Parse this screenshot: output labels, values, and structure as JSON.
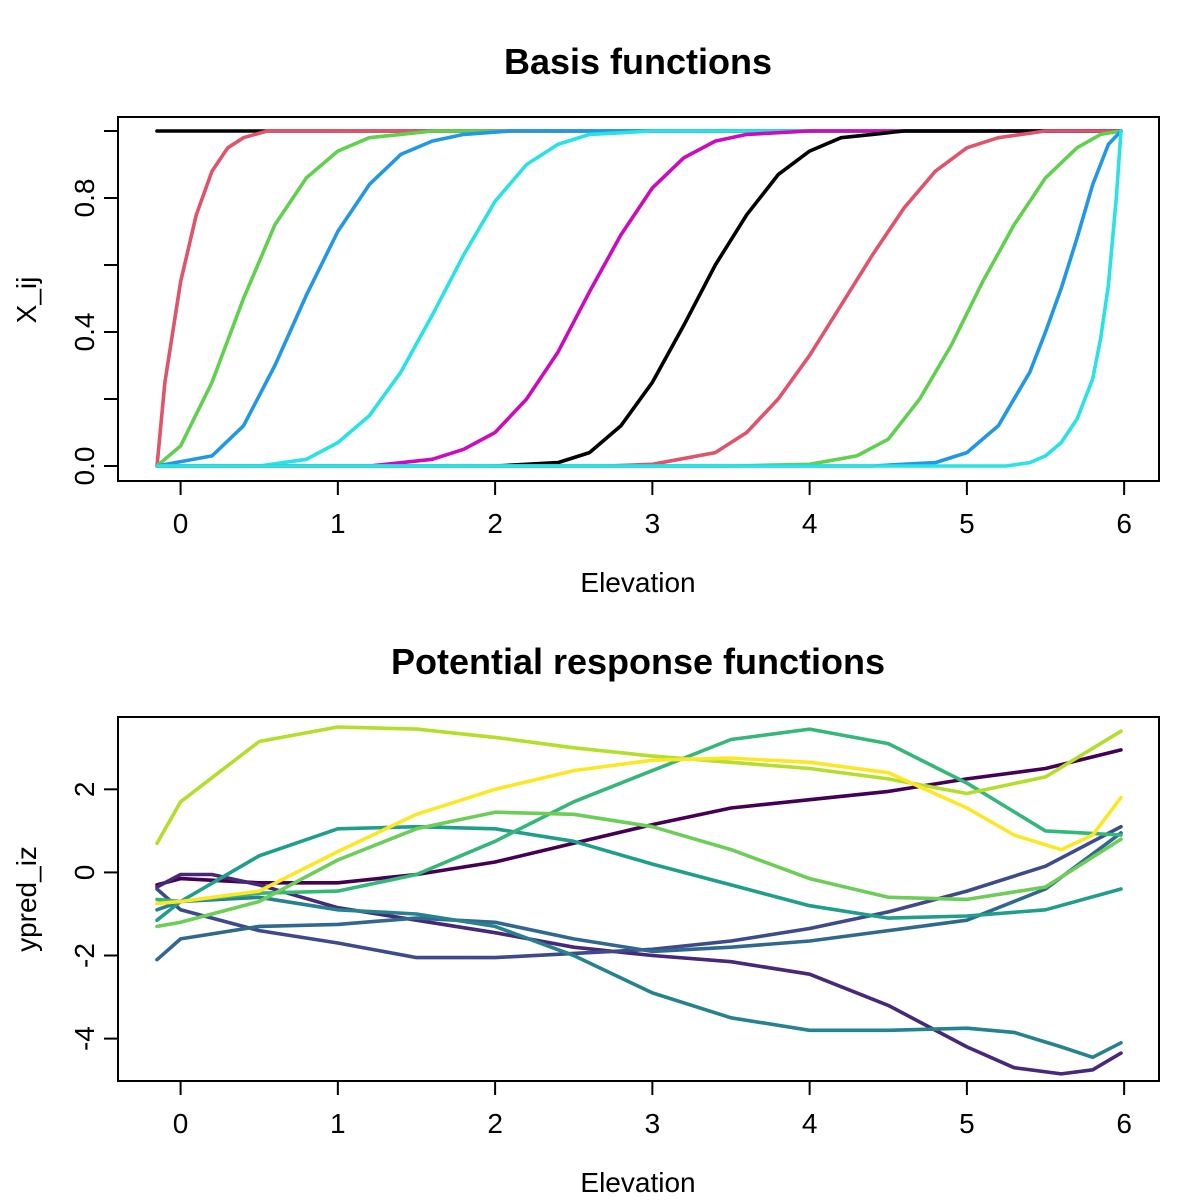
{
  "chart_data": [
    {
      "type": "line",
      "title": "Basis functions",
      "xlabel": "Elevation",
      "ylabel": "X_ij",
      "xlim": [
        -0.15,
        5.98
      ],
      "ylim": [
        0,
        1
      ],
      "xticks": [
        0,
        1,
        2,
        3,
        4,
        5,
        6
      ],
      "xtick_labels": [
        "0",
        "1",
        "2",
        "3",
        "4",
        "5",
        "6"
      ],
      "yticks": [
        0,
        0.2,
        0.4,
        0.6,
        0.8,
        1.0
      ],
      "ytick_labels": [
        "0.0",
        "",
        "0.4",
        "",
        "0.8",
        ""
      ],
      "grid": false,
      "legend": "none",
      "series": [
        {
          "color": "#000000",
          "x": [
            -0.15,
            5.98
          ],
          "y": [
            1,
            1
          ]
        },
        {
          "color": "#DF536B",
          "x": [
            -0.15,
            -0.1,
            0,
            0.1,
            0.2,
            0.3,
            0.4,
            0.55,
            5.98
          ],
          "y": [
            0,
            0.25,
            0.55,
            0.75,
            0.88,
            0.95,
            0.98,
            1,
            1
          ]
        },
        {
          "color": "#61D04F",
          "x": [
            -0.15,
            0,
            0.2,
            0.4,
            0.6,
            0.8,
            1.0,
            1.2,
            1.4,
            1.6,
            5.98
          ],
          "y": [
            0,
            0.06,
            0.25,
            0.5,
            0.72,
            0.86,
            0.94,
            0.98,
            0.99,
            1,
            1
          ]
        },
        {
          "color": "#2297E6",
          "x": [
            -0.15,
            0.2,
            0.4,
            0.6,
            0.8,
            1.0,
            1.2,
            1.4,
            1.6,
            1.8,
            2.1,
            2.4,
            5.98
          ],
          "y": [
            0,
            0.03,
            0.12,
            0.3,
            0.51,
            0.7,
            0.84,
            0.93,
            0.97,
            0.99,
            1,
            1,
            1
          ]
        },
        {
          "color": "#28E2E5",
          "x": [
            -0.15,
            0.5,
            0.8,
            1.0,
            1.2,
            1.4,
            1.6,
            1.8,
            2.0,
            2.2,
            2.4,
            2.6,
            3.0,
            5.98
          ],
          "y": [
            0,
            0,
            0.02,
            0.07,
            0.15,
            0.28,
            0.45,
            0.63,
            0.79,
            0.9,
            0.96,
            0.99,
            1,
            1
          ]
        },
        {
          "color": "#CD0BBC",
          "x": [
            -0.15,
            1.2,
            1.6,
            1.8,
            2.0,
            2.2,
            2.4,
            2.6,
            2.8,
            3.0,
            3.2,
            3.4,
            3.6,
            4.0,
            5.98
          ],
          "y": [
            0,
            0,
            0.02,
            0.05,
            0.1,
            0.2,
            0.34,
            0.52,
            0.69,
            0.83,
            0.92,
            0.97,
            0.99,
            1,
            1
          ]
        },
        {
          "color": "#000000",
          "x": [
            2.0,
            2.4,
            2.6,
            2.8,
            3.0,
            3.2,
            3.4,
            3.6,
            3.8,
            4.0,
            4.2,
            4.4,
            4.6,
            5.0,
            5.98
          ],
          "y": [
            0,
            0.01,
            0.04,
            0.12,
            0.25,
            0.42,
            0.6,
            0.75,
            0.87,
            0.94,
            0.98,
            0.99,
            1,
            1,
            1
          ]
        },
        {
          "color": "#DF536B",
          "x": [
            -0.15,
            2.7,
            3.0,
            3.4,
            3.6,
            3.8,
            4.0,
            4.2,
            4.4,
            4.6,
            4.8,
            5.0,
            5.2,
            5.5,
            5.98
          ],
          "y": [
            0,
            0,
            0.005,
            0.04,
            0.1,
            0.2,
            0.33,
            0.48,
            0.63,
            0.77,
            0.88,
            0.95,
            0.98,
            1,
            1
          ]
        },
        {
          "color": "#61D04F",
          "x": [
            -0.15,
            3.5,
            4.0,
            4.3,
            4.5,
            4.7,
            4.9,
            5.1,
            5.3,
            5.5,
            5.7,
            5.85,
            5.98
          ],
          "y": [
            0,
            0,
            0.005,
            0.03,
            0.08,
            0.2,
            0.36,
            0.55,
            0.72,
            0.86,
            0.95,
            0.99,
            1
          ]
        },
        {
          "color": "#2297E6",
          "x": [
            -0.15,
            4.4,
            4.8,
            5.0,
            5.2,
            5.4,
            5.5,
            5.6,
            5.7,
            5.8,
            5.9,
            5.98
          ],
          "y": [
            0,
            0,
            0.01,
            0.04,
            0.12,
            0.28,
            0.4,
            0.53,
            0.68,
            0.84,
            0.96,
            1
          ]
        },
        {
          "color": "#28E2E5",
          "x": [
            -0.15,
            5.25,
            5.4,
            5.5,
            5.6,
            5.7,
            5.8,
            5.85,
            5.9,
            5.95,
            5.98
          ],
          "y": [
            0,
            0,
            0.01,
            0.03,
            0.07,
            0.14,
            0.26,
            0.38,
            0.54,
            0.8,
            1
          ]
        }
      ]
    },
    {
      "type": "line",
      "title": "Potential response functions",
      "xlabel": "Elevation",
      "ylabel": "ypred_iz",
      "xlim": [
        -0.15,
        5.98
      ],
      "ylim": [
        -4.9,
        3.5
      ],
      "xticks": [
        0,
        1,
        2,
        3,
        4,
        5,
        6
      ],
      "xtick_labels": [
        "0",
        "1",
        "2",
        "3",
        "4",
        "5",
        "6"
      ],
      "yticks": [
        -4,
        -2,
        0,
        2
      ],
      "ytick_labels": [
        "-4",
        "-2",
        "0",
        "2"
      ],
      "grid": false,
      "legend": "none",
      "series": [
        {
          "color": "#440154",
          "x": [
            -0.15,
            0,
            0.5,
            1,
            1.5,
            2,
            2.5,
            3,
            3.5,
            4,
            4.5,
            5,
            5.5,
            5.98
          ],
          "y": [
            -0.3,
            -0.15,
            -0.25,
            -0.25,
            -0.05,
            0.25,
            0.7,
            1.15,
            1.55,
            1.75,
            1.95,
            2.25,
            2.5,
            2.95
          ]
        },
        {
          "color": "#482878",
          "x": [
            -0.15,
            0,
            0.2,
            0.5,
            1,
            1.5,
            2,
            2.5,
            3,
            3.5,
            4,
            4.5,
            5,
            5.3,
            5.6,
            5.8,
            5.98
          ],
          "y": [
            -0.35,
            -0.05,
            -0.05,
            -0.3,
            -0.85,
            -1.15,
            -1.45,
            -1.8,
            -2.0,
            -2.15,
            -2.45,
            -3.2,
            -4.2,
            -4.7,
            -4.85,
            -4.75,
            -4.35
          ]
        },
        {
          "color": "#3E4A89",
          "x": [
            -0.15,
            0,
            0.5,
            1,
            1.5,
            2,
            2.5,
            3,
            3.5,
            4,
            4.5,
            5,
            5.5,
            5.98
          ],
          "y": [
            -0.4,
            -0.9,
            -1.4,
            -1.7,
            -2.05,
            -2.05,
            -1.95,
            -1.85,
            -1.65,
            -1.35,
            -0.95,
            -0.45,
            0.15,
            1.1
          ]
        },
        {
          "color": "#31688E",
          "x": [
            -0.15,
            0,
            0.5,
            1,
            1.5,
            2,
            2.5,
            3,
            3.5,
            4,
            4.5,
            5,
            5.5,
            5.98
          ],
          "y": [
            -2.1,
            -1.6,
            -1.3,
            -1.25,
            -1.1,
            -1.2,
            -1.6,
            -1.9,
            -1.8,
            -1.65,
            -1.4,
            -1.15,
            -0.4,
            0.95
          ]
        },
        {
          "color": "#26828E",
          "x": [
            -0.15,
            0,
            0.5,
            1,
            1.5,
            2,
            2.5,
            3,
            3.5,
            4,
            4.5,
            5,
            5.3,
            5.6,
            5.8,
            5.98
          ],
          "y": [
            -0.9,
            -0.7,
            -0.6,
            -0.9,
            -1.0,
            -1.3,
            -2.0,
            -2.9,
            -3.5,
            -3.8,
            -3.8,
            -3.75,
            -3.85,
            -4.2,
            -4.45,
            -4.1
          ]
        },
        {
          "color": "#1F9E89",
          "x": [
            -0.15,
            0,
            0.5,
            1,
            1.5,
            2,
            2.5,
            3,
            3.5,
            4,
            4.5,
            5,
            5.5,
            5.98
          ],
          "y": [
            -1.15,
            -0.7,
            0.4,
            1.05,
            1.1,
            1.05,
            0.75,
            0.2,
            -0.3,
            -0.8,
            -1.1,
            -1.05,
            -0.9,
            -0.4
          ]
        },
        {
          "color": "#35B779",
          "x": [
            -0.15,
            0,
            0.5,
            1,
            1.5,
            2,
            2.5,
            3,
            3.5,
            4,
            4.5,
            5,
            5.5,
            5.98
          ],
          "y": [
            -0.65,
            -0.7,
            -0.5,
            -0.45,
            -0.05,
            0.75,
            1.7,
            2.45,
            3.2,
            3.45,
            3.1,
            2.15,
            1.0,
            0.9
          ]
        },
        {
          "color": "#6DCD59",
          "x": [
            -0.15,
            0,
            0.5,
            1,
            1.5,
            2,
            2.5,
            3,
            3.5,
            4,
            4.5,
            5,
            5.5,
            5.98
          ],
          "y": [
            -1.3,
            -1.2,
            -0.7,
            0.3,
            1.05,
            1.45,
            1.4,
            1.1,
            0.55,
            -0.15,
            -0.6,
            -0.65,
            -0.35,
            0.8
          ]
        },
        {
          "color": "#B4DE2C",
          "x": [
            -0.15,
            0,
            0.5,
            1,
            1.5,
            2,
            2.5,
            3,
            3.5,
            4,
            4.5,
            5,
            5.5,
            5.98
          ],
          "y": [
            0.7,
            1.7,
            3.15,
            3.5,
            3.45,
            3.25,
            3.0,
            2.8,
            2.65,
            2.5,
            2.25,
            1.9,
            2.3,
            3.4
          ]
        },
        {
          "color": "#FDE725",
          "x": [
            -0.15,
            0,
            0.5,
            1,
            1.5,
            2,
            2.5,
            3,
            3.5,
            4,
            4.5,
            5,
            5.3,
            5.6,
            5.8,
            5.98
          ],
          "y": [
            -0.75,
            -0.7,
            -0.45,
            0.5,
            1.4,
            2.0,
            2.45,
            2.7,
            2.75,
            2.65,
            2.4,
            1.55,
            0.9,
            0.55,
            0.9,
            1.8
          ]
        }
      ]
    }
  ]
}
